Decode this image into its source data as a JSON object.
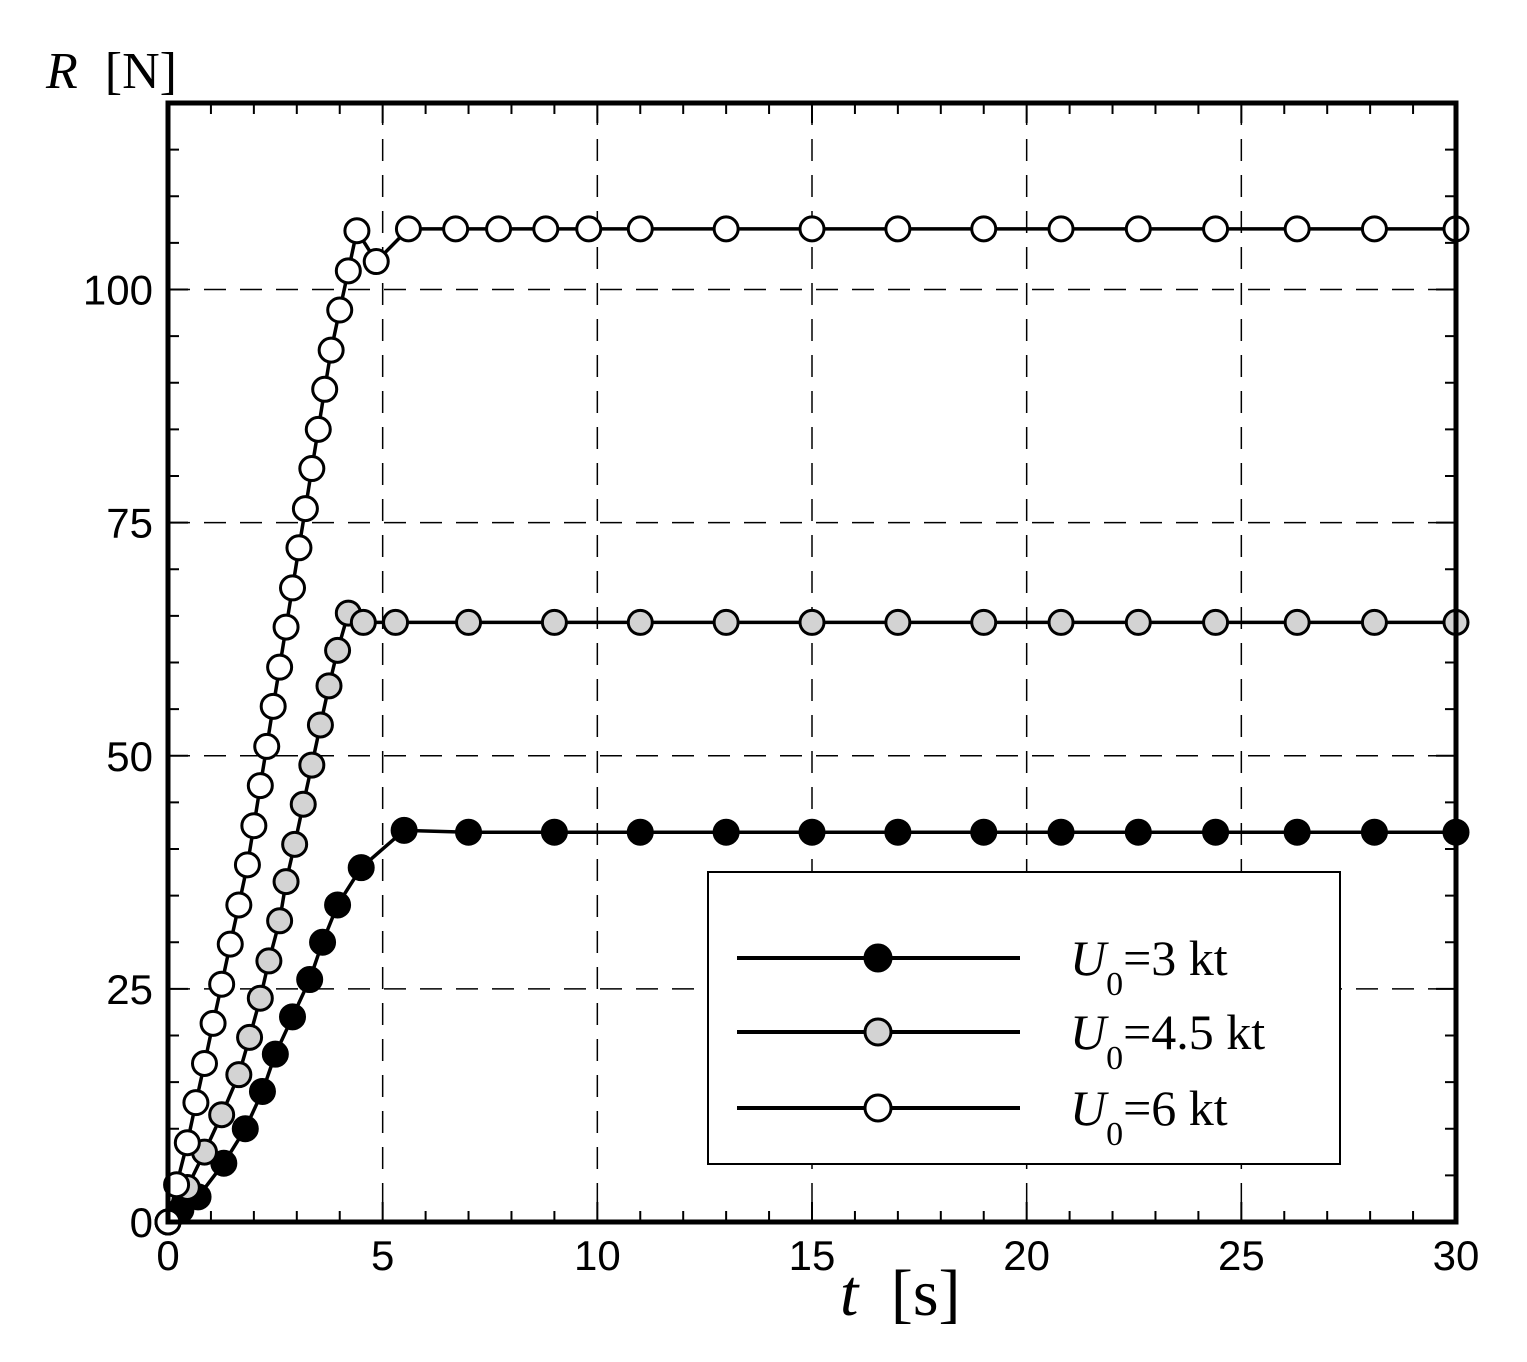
{
  "chart_data": {
    "type": "line",
    "title": "",
    "ylabel": {
      "var": "R",
      "unit": "[N]"
    },
    "xlabel": {
      "var": "t",
      "unit": "[s]"
    },
    "xlim": [
      0,
      30
    ],
    "ylim": [
      0,
      120
    ],
    "grid": true,
    "legend_position": "bottom-right",
    "x_ticks": [
      0,
      5,
      10,
      15,
      20,
      25,
      30
    ],
    "x_tick_labels": [
      "0",
      "5",
      "10",
      "15",
      "20",
      "25",
      "30"
    ],
    "y_ticks": [
      0,
      25,
      50,
      75,
      100
    ],
    "y_tick_labels": [
      "0",
      "25",
      "50",
      "75",
      "100"
    ],
    "series": [
      {
        "name": {
          "var": "U",
          "sub": "0",
          "rest": "=3 kt"
        },
        "marker_fill": "#000000",
        "x": [
          0,
          0.3,
          0.7,
          1.3,
          1.8,
          2.2,
          2.5,
          2.9,
          3.3,
          3.6,
          3.95,
          4.5,
          5.5,
          7,
          9,
          11,
          13,
          15,
          17,
          19,
          20.8,
          22.6,
          24.4,
          26.3,
          28.1,
          30
        ],
        "y": [
          0,
          1.3,
          2.7,
          6.3,
          10,
          14,
          18,
          22,
          26,
          30,
          34,
          38,
          42,
          41.8,
          41.8,
          41.8,
          41.8,
          41.8,
          41.8,
          41.8,
          41.8,
          41.8,
          41.8,
          41.8,
          41.8,
          41.8
        ]
      },
      {
        "name": {
          "var": "U",
          "sub": "0",
          "rest": "=4.5 kt"
        },
        "marker_fill": "#d3d3d3",
        "x": [
          0,
          0.45,
          0.85,
          1.25,
          1.65,
          1.9,
          2.15,
          2.35,
          2.6,
          2.75,
          2.95,
          3.15,
          3.35,
          3.55,
          3.75,
          3.95,
          4.2,
          4.55,
          5.3,
          7,
          9,
          11,
          13,
          15,
          17,
          19,
          20.8,
          22.6,
          24.4,
          26.3,
          28.1,
          30
        ],
        "y": [
          0,
          3.7,
          7.5,
          11.5,
          15.8,
          19.8,
          24,
          28,
          32.3,
          36.5,
          40.5,
          44.8,
          49,
          53.3,
          57.5,
          61.3,
          65.3,
          64.3,
          64.3,
          64.3,
          64.3,
          64.3,
          64.3,
          64.3,
          64.3,
          64.3,
          64.3,
          64.3,
          64.3,
          64.3,
          64.3,
          64.3
        ]
      },
      {
        "name": {
          "var": "U",
          "sub": "0",
          "rest": "=6 kt"
        },
        "marker_fill": "#ffffff",
        "x": [
          0,
          0.2,
          0.45,
          0.65,
          0.85,
          1.05,
          1.25,
          1.45,
          1.65,
          1.85,
          2.0,
          2.15,
          2.3,
          2.45,
          2.6,
          2.75,
          2.9,
          3.05,
          3.2,
          3.35,
          3.5,
          3.65,
          3.8,
          4.0,
          4.2,
          4.4,
          4.85,
          5.6,
          6.7,
          7.7,
          8.8,
          9.8,
          11,
          13,
          15,
          17,
          19,
          20.8,
          22.6,
          24.4,
          26.3,
          28.1,
          30
        ],
        "y": [
          0,
          4,
          8.5,
          12.8,
          17,
          21.3,
          25.5,
          29.8,
          34,
          38.3,
          42.5,
          46.8,
          51,
          55.3,
          59.5,
          63.8,
          68,
          72.3,
          76.5,
          80.8,
          85,
          89.3,
          93.5,
          97.8,
          102,
          106.3,
          103,
          106.5,
          106.5,
          106.5,
          106.5,
          106.5,
          106.5,
          106.5,
          106.5,
          106.5,
          106.5,
          106.5,
          106.5,
          106.5,
          106.5,
          106.5,
          106.5
        ]
      }
    ]
  }
}
